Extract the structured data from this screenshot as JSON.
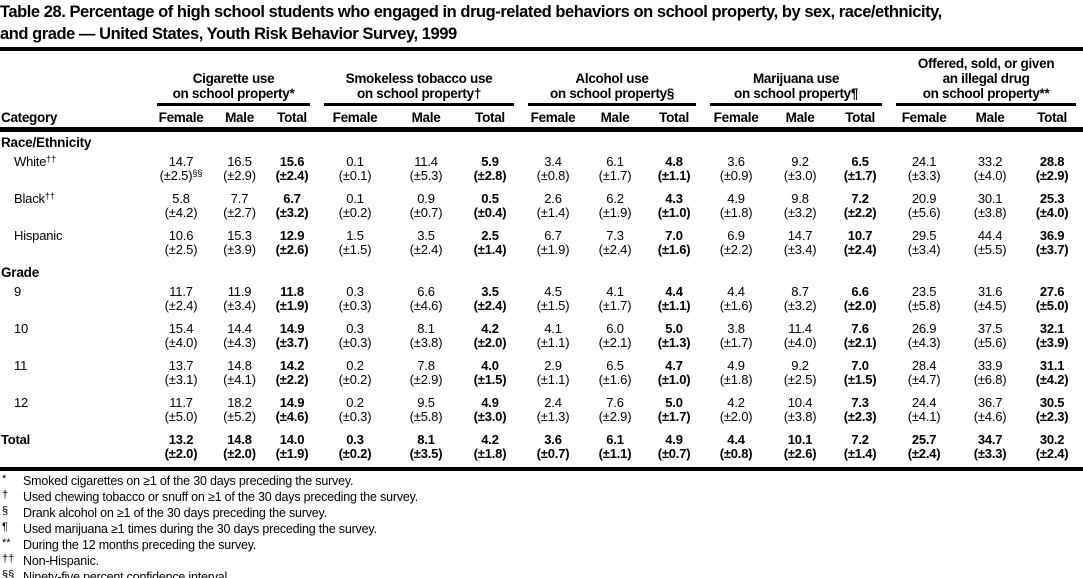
{
  "title": {
    "line1": "Table 28. Percentage of high school students who engaged in drug-related behaviors on school property, by sex, race/ethnicity,",
    "line2": "and grade — United States, Youth Risk Behavior Survey, 1999"
  },
  "table": {
    "category_header": "Category",
    "sub_headers": [
      "Female",
      "Male",
      "Total"
    ],
    "groups": [
      {
        "lines": [
          "Cigarette use",
          "on school property*"
        ]
      },
      {
        "lines": [
          "Smokeless tobacco use",
          "on school property†"
        ]
      },
      {
        "lines": [
          "Alcohol use",
          "on school property§"
        ]
      },
      {
        "lines": [
          "Marijuana use",
          "on school property¶"
        ]
      },
      {
        "lines": [
          "Offered, sold, or given",
          "an illegal drug",
          "on school property**"
        ]
      }
    ],
    "sections": [
      {
        "header": "Race/Ethnicity",
        "rows": [
          {
            "category": "White",
            "category_sup": "††",
            "values": [
              "14.7",
              "16.5",
              "15.6",
              "0.1",
              "11.4",
              "5.9",
              "3.4",
              "6.1",
              "4.8",
              "3.6",
              "9.2",
              "6.5",
              "24.1",
              "33.2",
              "28.8"
            ],
            "ci": [
              "(±2.5)",
              "(±2.9)",
              "(±2.4)",
              "(±0.1)",
              "(±5.3)",
              "(±2.8)",
              "(±0.8)",
              "(±1.7)",
              "(±1.1)",
              "(±0.9)",
              "(±3.0)",
              "(±1.7)",
              "(±3.3)",
              "(±4.0)",
              "(±2.9)"
            ],
            "ci_sup_index": 0,
            "ci_sup_text": "§§"
          },
          {
            "category": "Black",
            "category_sup": "††",
            "values": [
              "5.8",
              "7.7",
              "6.7",
              "0.1",
              "0.9",
              "0.5",
              "2.6",
              "6.2",
              "4.3",
              "4.9",
              "9.8",
              "7.2",
              "20.9",
              "30.1",
              "25.3"
            ],
            "ci": [
              "(±4.2)",
              "(±2.7)",
              "(±3.2)",
              "(±0.2)",
              "(±0.7)",
              "(±0.4)",
              "(±1.4)",
              "(±1.9)",
              "(±1.0)",
              "(±1.8)",
              "(±3.2)",
              "(±2.2)",
              "(±5.6)",
              "(±3.8)",
              "(±4.0)"
            ]
          },
          {
            "category": "Hispanic",
            "values": [
              "10.6",
              "15.3",
              "12.9",
              "1.5",
              "3.5",
              "2.5",
              "6.7",
              "7.3",
              "7.0",
              "6.9",
              "14.7",
              "10.7",
              "29.5",
              "44.4",
              "36.9"
            ],
            "ci": [
              "(±2.5)",
              "(±3.9)",
              "(±2.6)",
              "(±1.5)",
              "(±2.4)",
              "(±1.4)",
              "(±1.9)",
              "(±2.4)",
              "(±1.6)",
              "(±2.2)",
              "(±3.4)",
              "(±2.4)",
              "(±3.4)",
              "(±5.5)",
              "(±3.7)"
            ]
          }
        ]
      },
      {
        "header": "Grade",
        "rows": [
          {
            "category": "9",
            "values": [
              "11.7",
              "11.9",
              "11.8",
              "0.3",
              "6.6",
              "3.5",
              "4.5",
              "4.1",
              "4.4",
              "4.4",
              "8.7",
              "6.6",
              "23.5",
              "31.6",
              "27.6"
            ],
            "ci": [
              "(±2.4)",
              "(±3.4)",
              "(±1.9)",
              "(±0.3)",
              "(±4.6)",
              "(±2.4)",
              "(±1.5)",
              "(±1.7)",
              "(±1.1)",
              "(±1.6)",
              "(±3.2)",
              "(±2.0)",
              "(±5.8)",
              "(±4.5)",
              "(±5.0)"
            ]
          },
          {
            "category": "10",
            "values": [
              "15.4",
              "14.4",
              "14.9",
              "0.3",
              "8.1",
              "4.2",
              "4.1",
              "6.0",
              "5.0",
              "3.8",
              "11.4",
              "7.6",
              "26.9",
              "37.5",
              "32.1"
            ],
            "ci": [
              "(±4.0)",
              "(±4.3)",
              "(±3.7)",
              "(±0.3)",
              "(±3.8)",
              "(±2.0)",
              "(±1.1)",
              "(±2.1)",
              "(±1.3)",
              "(±1.7)",
              "(±4.0)",
              "(±2.1)",
              "(±4.3)",
              "(±5.6)",
              "(±3.9)"
            ]
          },
          {
            "category": "11",
            "values": [
              "13.7",
              "14.8",
              "14.2",
              "0.2",
              "7.8",
              "4.0",
              "2.9",
              "6.5",
              "4.7",
              "4.9",
              "9.2",
              "7.0",
              "28.4",
              "33.9",
              "31.1"
            ],
            "ci": [
              "(±3.1)",
              "(±4.1)",
              "(±2.2)",
              "(±0.2)",
              "(±2.9)",
              "(±1.5)",
              "(±1.1)",
              "(±1.6)",
              "(±1.0)",
              "(±1.8)",
              "(±2.5)",
              "(±1.5)",
              "(±4.7)",
              "(±6.8)",
              "(±4.2)"
            ]
          },
          {
            "category": "12",
            "values": [
              "11.7",
              "18.2",
              "14.9",
              "0.2",
              "9.5",
              "4.9",
              "2.4",
              "7.6",
              "5.0",
              "4.2",
              "10.4",
              "7.3",
              "24.4",
              "36.7",
              "30.5"
            ],
            "ci": [
              "(±5.0)",
              "(±5.2)",
              "(±4.6)",
              "(±0.3)",
              "(±5.8)",
              "(±3.0)",
              "(±1.3)",
              "(±2.9)",
              "(±1.7)",
              "(±2.0)",
              "(±3.8)",
              "(±2.3)",
              "(±4.1)",
              "(±4.6)",
              "(±2.3)"
            ]
          }
        ]
      }
    ],
    "total_row": {
      "category": "Total",
      "values": [
        "13.2",
        "14.8",
        "14.0",
        "0.3",
        "8.1",
        "4.2",
        "3.6",
        "6.1",
        "4.9",
        "4.4",
        "10.1",
        "7.2",
        "25.7",
        "34.7",
        "30.2"
      ],
      "ci": [
        "(±2.0)",
        "(±2.0)",
        "(±1.9)",
        "(±0.2)",
        "(±3.5)",
        "(±1.8)",
        "(±0.7)",
        "(±1.1)",
        "(±0.7)",
        "(±0.8)",
        "(±2.6)",
        "(±1.4)",
        "(±2.4)",
        "(±3.3)",
        "(±2.4)"
      ]
    }
  },
  "footnotes": [
    {
      "symbol": "*",
      "text": "Smoked cigarettes on ≥1 of the 30 days preceding the survey."
    },
    {
      "symbol": "†",
      "text": "Used chewing tobacco or snuff on ≥1 of the 30 days preceding the survey."
    },
    {
      "symbol": "§",
      "text": "Drank alcohol on ≥1 of the 30 days preceding the survey."
    },
    {
      "symbol": "¶",
      "text": "Used marijuana ≥1 times during the 30 days preceding the survey."
    },
    {
      "symbol": "**",
      "text": "During the 12 months preceding the survey."
    },
    {
      "symbol": "††",
      "text": "Non-Hispanic."
    },
    {
      "symbol": "§§",
      "text": "Ninety-five percent confidence interval."
    }
  ]
}
